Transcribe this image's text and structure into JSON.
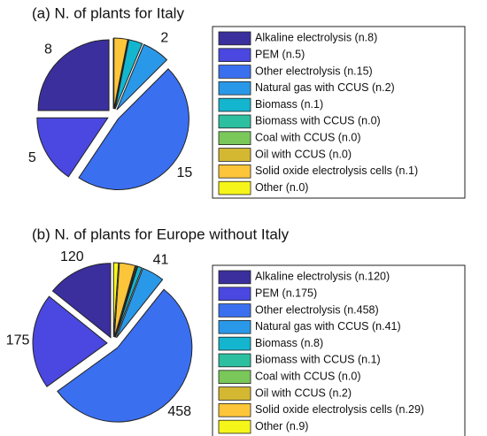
{
  "chart_data": [
    {
      "type": "pie",
      "title": "(a) N. of plants for Italy",
      "categories": [
        "Alkaline electrolysis (n.8)",
        "PEM (n.5)",
        "Other electrolysis (n.15)",
        "Natural gas with CCUS (n.2)",
        "Biomass (n.1)",
        "Biomass with CCUS (n.0)",
        "Coal with CCUS (n.0)",
        "Oil with CCUS (n.0)",
        "Solid oxide electrolysis cells (n.1)",
        "Other (n.0)"
      ],
      "values": [
        8,
        5,
        15,
        2,
        1,
        0,
        0,
        0,
        1,
        0
      ],
      "value_labels": [
        "8",
        "5",
        "15",
        "2",
        null,
        null,
        null,
        null,
        null,
        null
      ],
      "colors": [
        "#3b2f9e",
        "#4a48e0",
        "#3a6ff0",
        "#2a98e8",
        "#14b5cf",
        "#2cc0a0",
        "#7ac75a",
        "#d4b831",
        "#fcc53a",
        "#f6f51a"
      ],
      "legend": "right"
    },
    {
      "type": "pie",
      "title": "(b) N. of plants for Europe without Italy",
      "categories": [
        "Alkaline electrolysis (n.120)",
        "PEM (n.175)",
        "Other electrolysis (n.458)",
        "Natural gas with CCUS (n.41)",
        "Biomass (n.8)",
        "Biomass with CCUS (n.1)",
        "Coal with CCUS (n.0)",
        "Oil with CCUS (n.2)",
        "Solid oxide electrolysis cells (n.29)",
        "Other (n.9)"
      ],
      "values": [
        120,
        175,
        458,
        41,
        8,
        1,
        0,
        2,
        29,
        9
      ],
      "value_labels": [
        "120",
        "175",
        "458",
        "41",
        null,
        null,
        null,
        null,
        null,
        null
      ],
      "colors": [
        "#3b2f9e",
        "#4a48e0",
        "#3a6ff0",
        "#2a98e8",
        "#14b5cf",
        "#2cc0a0",
        "#7ac75a",
        "#d4b831",
        "#fcc53a",
        "#f6f51a"
      ],
      "legend": "right"
    }
  ]
}
